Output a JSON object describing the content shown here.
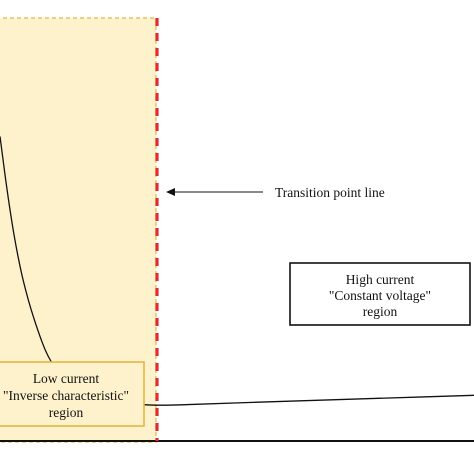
{
  "chart_data": {
    "type": "line",
    "title": "",
    "xlabel": "",
    "ylabel": "",
    "series": [
      {
        "values": [
          [
            0.0,
            0.72
          ],
          [
            0.02,
            0.55
          ],
          [
            0.04,
            0.42
          ],
          [
            0.06,
            0.33
          ],
          [
            0.08,
            0.26
          ],
          [
            0.1,
            0.2
          ],
          [
            0.13,
            0.15
          ],
          [
            0.16,
            0.12
          ],
          [
            0.2,
            0.1
          ],
          [
            0.24,
            0.093
          ],
          [
            0.28,
            0.088
          ],
          [
            0.33,
            0.0835
          ],
          [
            0.45,
            0.088
          ],
          [
            0.6,
            0.094
          ],
          [
            0.8,
            0.101
          ],
          [
            1.0,
            0.108
          ]
        ]
      }
    ],
    "transition_x": 0.33,
    "regions": [
      {
        "x_from": 0.0,
        "x_to": 0.33,
        "fill": "#fdf2cc",
        "border": "#e3b740"
      }
    ],
    "colors": {
      "transition_line": "#e32b2b",
      "region_fill": "#fdf2cc",
      "region_border": "#e3b740",
      "curve": "#111111",
      "label_box_border": "#111111"
    }
  },
  "annotations": {
    "transition_label": "Transition point line",
    "low_region": [
      "Low current",
      "\"Inverse characteristic\"",
      "region"
    ],
    "high_region": [
      "High current",
      "\"Constant voltage\"",
      "region"
    ]
  }
}
